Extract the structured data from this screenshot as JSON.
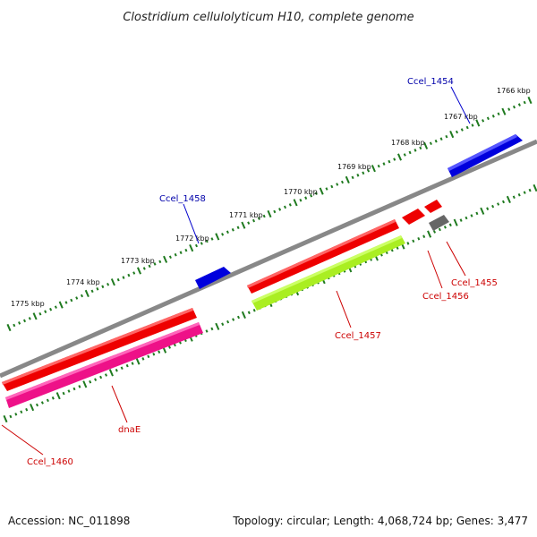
{
  "title": "Clostridium cellulolyticum H10, complete genome",
  "footer": {
    "accession": "Accession: NC_011898",
    "summary": "Topology: circular; Length: 4,068,724 bp; Genes: 3,477"
  },
  "colors": {
    "backbone": "#888888",
    "tick": "#1f7a1f",
    "blue_gene": "#0000dd",
    "red_gene": "#ee0000",
    "pink_gene": "#ee1188",
    "green_gene": "#aaee22",
    "gray_gene": "#666666",
    "blue_label": "#0000aa",
    "red_label": "#cc0000"
  },
  "scale_labels": [
    "1766 kbp",
    "1767 kbp",
    "1768 kbp",
    "1769 kbp",
    "1770 kbp",
    "1771 kbp",
    "1772 kbp",
    "1773 kbp",
    "1774 kbp",
    "1775 kbp"
  ],
  "genes": [
    {
      "name": "Ccel_1454",
      "strand": "+",
      "color": "blue"
    },
    {
      "name": "Ccel_1455",
      "strand": "-",
      "color": "gray"
    },
    {
      "name": "Ccel_1456",
      "strand": "-",
      "color": "red"
    },
    {
      "name": "Ccel_1457",
      "strand": "-",
      "color": "green"
    },
    {
      "name": "Ccel_1458",
      "strand": "+",
      "color": "blue"
    },
    {
      "name": "dnaE",
      "strand": "-",
      "color": "pink"
    },
    {
      "name": "Ccel_1460",
      "strand": "-",
      "color": "red"
    }
  ]
}
